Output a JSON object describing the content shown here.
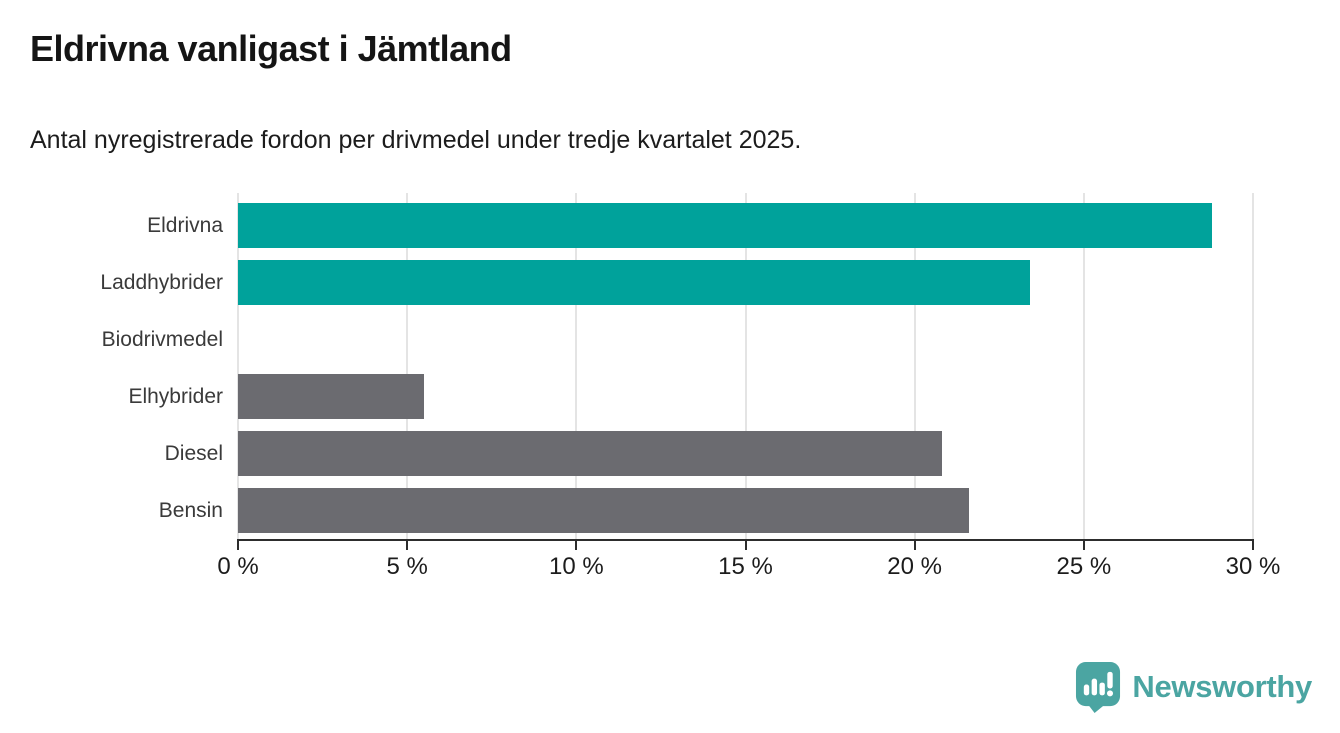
{
  "header": {
    "title": "Eldrivna vanligast i Jämtland",
    "subtitle": "Antal nyregistrerade fordon per drivmedel under tredje kvartalet 2025."
  },
  "chart_data": {
    "type": "bar",
    "orientation": "horizontal",
    "title": "Eldrivna vanligast i Jämtland",
    "subtitle": "Antal nyregistrerade fordon per drivmedel under tredje kvartalet 2025.",
    "categories": [
      "Eldrivna",
      "Laddhybrider",
      "Biodrivmedel",
      "Elhybrider",
      "Diesel",
      "Bensin"
    ],
    "values": [
      28.8,
      23.4,
      0,
      5.5,
      20.8,
      21.6
    ],
    "unit": "%",
    "xlim": [
      0,
      30
    ],
    "x_ticks": [
      "0 %",
      "5 %",
      "10 %",
      "15 %",
      "20 %",
      "25 %",
      "30 %"
    ],
    "grid": true,
    "xlabel": "",
    "ylabel": "",
    "legend": null,
    "bar_colors": [
      "#00a29b",
      "#00a29b",
      "#6b6b70",
      "#6b6b70",
      "#6b6b70",
      "#6b6b70"
    ],
    "colors": {
      "highlight": "#00a29b",
      "default": "#6b6b70",
      "gridline": "#e4e4e4",
      "axis": "#2d2d2d"
    }
  },
  "footer": {
    "brand": "Newsworthy",
    "brand_color": "#4ba5a2",
    "logo_icon": "newsworthy-speech-bubble-bar-chart-icon"
  }
}
